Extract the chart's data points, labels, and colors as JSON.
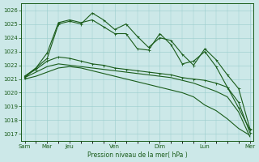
{
  "bg_color": "#cce8e8",
  "grid_color": "#99cccc",
  "line_color": "#1a5c1a",
  "xlabel": "Pression niveau de la mer( hPa )",
  "ylim": [
    1016.5,
    1026.5
  ],
  "yticks": [
    1017,
    1018,
    1019,
    1020,
    1021,
    1022,
    1023,
    1024,
    1025,
    1026
  ],
  "x_day_positions": [
    0,
    2,
    4,
    8,
    12,
    16,
    20
  ],
  "x_day_labels": [
    "Sam",
    "Mar",
    "Jeu",
    "Ven",
    "Dim",
    "Lun",
    "Mer"
  ],
  "n_points": 21,
  "line1": [
    1021.2,
    1021.8,
    1022.5,
    1025.0,
    1025.2,
    1025.0,
    1025.8,
    1025.3,
    1024.6,
    1025.0,
    1024.1,
    1023.3,
    1024.0,
    1023.8,
    1022.8,
    1022.0,
    1023.2,
    1022.4,
    1021.3,
    1020.3,
    1017.4
  ],
  "line2": [
    1021.2,
    1021.7,
    1022.3,
    1022.6,
    1022.5,
    1022.3,
    1022.1,
    1022.0,
    1021.8,
    1021.7,
    1021.6,
    1021.5,
    1021.4,
    1021.3,
    1021.1,
    1021.0,
    1020.9,
    1020.7,
    1020.4,
    1019.3,
    1017.1
  ],
  "line3": [
    1021.1,
    1021.5,
    1021.9,
    1022.1,
    1022.0,
    1021.9,
    1021.8,
    1021.7,
    1021.6,
    1021.5,
    1021.4,
    1021.3,
    1021.2,
    1021.1,
    1020.9,
    1020.7,
    1020.4,
    1020.1,
    1019.7,
    1018.6,
    1016.8
  ],
  "line4": [
    1021.1,
    1021.8,
    1022.9,
    1025.1,
    1025.3,
    1025.1,
    1025.3,
    1024.8,
    1024.3,
    1024.3,
    1023.2,
    1023.1,
    1024.3,
    1023.5,
    1022.1,
    1022.3,
    1023.0,
    1021.9,
    1020.4,
    1018.9,
    1017.3
  ],
  "line5": [
    1021.0,
    1021.2,
    1021.5,
    1021.8,
    1021.9,
    1021.8,
    1021.6,
    1021.4,
    1021.2,
    1021.0,
    1020.8,
    1020.6,
    1020.4,
    1020.2,
    1020.0,
    1019.7,
    1019.1,
    1018.7,
    1018.1,
    1017.4,
    1016.9
  ],
  "line1_marker": true,
  "line2_marker": true,
  "line3_marker": false,
  "line4_marker": true,
  "line5_marker": false
}
